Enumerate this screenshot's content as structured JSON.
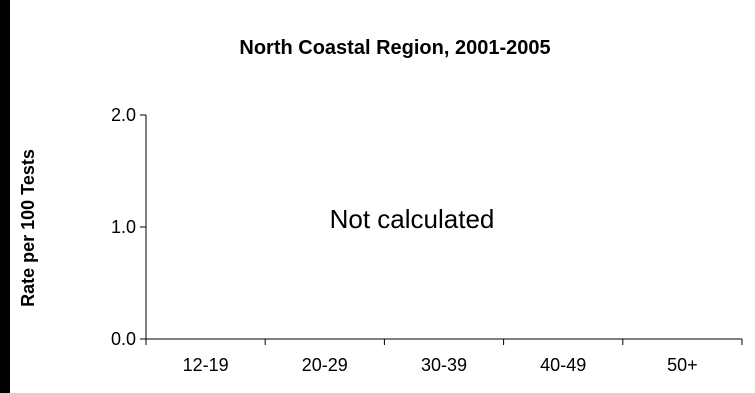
{
  "chart_data": {
    "type": "bar",
    "title": "North Coastal Region, 2001-2005",
    "xlabel": "",
    "ylabel": "Rate per 100 Tests",
    "categories": [
      "12-19",
      "20-29",
      "30-39",
      "40-49",
      "50+"
    ],
    "yticks": [
      "0.0",
      "1.0",
      "2.0"
    ],
    "ylim": [
      0,
      2
    ],
    "annotation": "Not calculated",
    "grid": false,
    "colors": {
      "background": "#000000",
      "plot": "#ffffff",
      "axis": "#000000"
    }
  }
}
